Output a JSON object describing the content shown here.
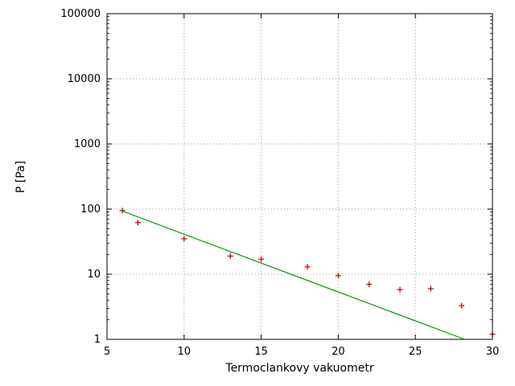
{
  "chart_data": {
    "type": "scatter",
    "title": "",
    "xlabel": "Termoclankovy vakuometr",
    "ylabel": "P [Pa]",
    "x_scale": "linear",
    "y_scale": "log",
    "xlim": [
      5,
      30
    ],
    "ylim": [
      1,
      100000
    ],
    "x_ticks": [
      5,
      10,
      15,
      20,
      25,
      30
    ],
    "x_tick_labels": [
      "5",
      "10",
      "15",
      "20",
      "25",
      "30"
    ],
    "y_ticks": [
      1,
      10,
      100,
      1000,
      10000,
      100000
    ],
    "y_tick_labels": [
      "1",
      "10",
      "100",
      "1000",
      "10000",
      "100000"
    ],
    "grid": true,
    "legend": "none",
    "colors": {
      "points": "#dd0000",
      "fit_line": "#00a000",
      "axis": "#000000",
      "grid": "#9a9a9a",
      "background": "#ffffff"
    },
    "series": [
      {
        "name": "measurements",
        "type": "points",
        "marker": "plus",
        "color": "#dd0000",
        "points": [
          {
            "x": 6,
            "y": 95
          },
          {
            "x": 7,
            "y": 62
          },
          {
            "x": 10,
            "y": 35
          },
          {
            "x": 13,
            "y": 19
          },
          {
            "x": 15,
            "y": 17
          },
          {
            "x": 18,
            "y": 13
          },
          {
            "x": 20,
            "y": 9.5
          },
          {
            "x": 22,
            "y": 7
          },
          {
            "x": 24,
            "y": 5.8
          },
          {
            "x": 26,
            "y": 6.0
          },
          {
            "x": 28,
            "y": 3.3
          },
          {
            "x": 30,
            "y": 1.2
          }
        ]
      },
      {
        "name": "fit-line",
        "type": "line",
        "color": "#00a000",
        "points": [
          {
            "x": 5.9,
            "y": 95
          },
          {
            "x": 28.2,
            "y": 1
          }
        ]
      }
    ]
  }
}
